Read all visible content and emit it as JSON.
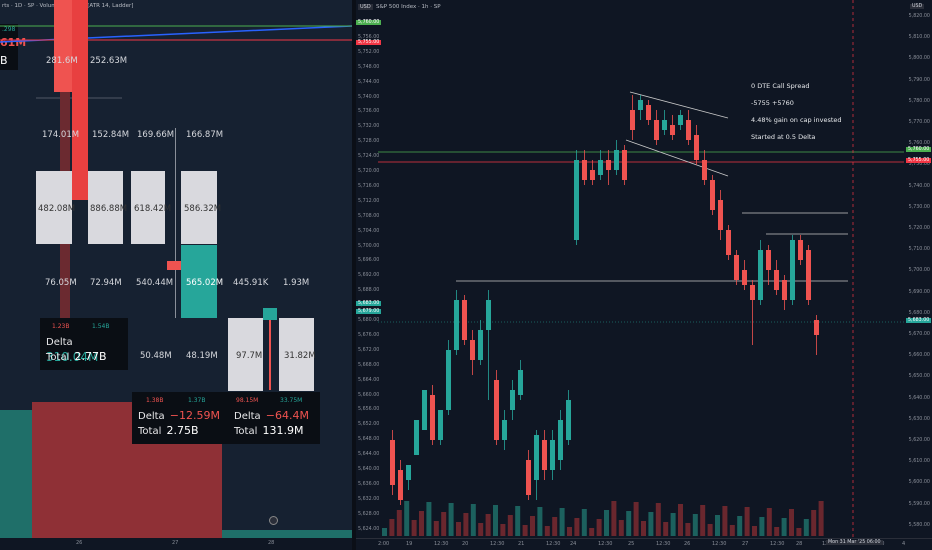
{
  "left_panel": {
    "title": "rts · 1D · SP · Volume footprint [ATR 14, Ladder]",
    "top_value_green": ".298",
    "top_value_red": "61M",
    "top_value_total": "B",
    "row1": {
      "left": "281.6M",
      "right": "252.63M"
    },
    "row2": {
      "a": "174.01M",
      "b": "152.84M",
      "c": "169.66M",
      "d": "166.87M"
    },
    "row3": {
      "a": "482.08M",
      "b": "886.88M",
      "c": "618.42M",
      "d": "586.32M"
    },
    "row4": {
      "a": "76.05M",
      "b": "72.94M",
      "c": "540.44M",
      "d": "565.02M",
      "e": "445.91K",
      "f": "1.93M"
    },
    "row5": {
      "a": "50.48M",
      "b": "48.19M",
      "c": "97.7M",
      "d": "31.82M"
    },
    "box1": {
      "red_small": "1.23B",
      "green_small": "1.54B",
      "delta_label": "Delta",
      "delta": "310.04M",
      "total_label": "Total",
      "total": "2.77B"
    },
    "box2": {
      "red_small": "1.38B",
      "green_small": "1.37B",
      "delta_label": "Delta",
      "delta": "−12.59M",
      "total_label": "Total",
      "total": "2.75B"
    },
    "box3": {
      "red_small": "98.15M",
      "green_small": "33.75M",
      "delta_label": "Delta",
      "delta": "−64.4M",
      "total_label": "Total",
      "total": "131.9M"
    },
    "x_ticks": [
      "26",
      "27",
      "28"
    ]
  },
  "right_panel": {
    "currency": "USD",
    "title": "S&P 500 Index · 1h · SP",
    "annotation": {
      "line1": "0 DTE Call Spread",
      "line2": "-5755 +5760",
      "line3": "4.48% gain on cap invested",
      "line4": "Started at 0.5 Delta"
    },
    "left_axis": [
      "5,760.00",
      "5,756.00",
      "5,752.00",
      "5,748.00",
      "5,744.00",
      "5,740.00",
      "5,736.00",
      "5,732.00",
      "5,728.00",
      "5,724.00",
      "5,720.00",
      "5,716.00",
      "5,712.00",
      "5,708.00",
      "5,704.00",
      "5,700.00",
      "5,696.00",
      "5,692.00",
      "5,688.00",
      "5,684.00",
      "5,680.00",
      "5,676.00",
      "5,672.00",
      "5,668.00",
      "5,664.00",
      "5,660.00",
      "5,656.00",
      "5,652.00",
      "5,648.00",
      "5,644.00",
      "5,640.00",
      "5,636.00",
      "5,632.00",
      "5,628.00",
      "5,624.00"
    ],
    "left_tags": {
      "green": "5,760.00",
      "red": "5,755.00",
      "current": "5,683.00",
      "current2": "5,679.00"
    },
    "right_axis": [
      "5,820.00",
      "5,810.00",
      "5,800.00",
      "5,790.00",
      "5,780.00",
      "5,770.00",
      "5,760.00",
      "5,750.00",
      "5,740.00",
      "5,730.00",
      "5,720.00",
      "5,710.00",
      "5,700.00",
      "5,690.00",
      "5,680.00",
      "5,670.00",
      "5,660.00",
      "5,650.00",
      "5,640.00",
      "5,630.00",
      "5,620.00",
      "5,610.00",
      "5,600.00",
      "5,590.00",
      "5,580.00"
    ],
    "right_tags": {
      "green": "5,760.00",
      "red": "5,755.00",
      "current": "5,683.00"
    },
    "x_ticks": [
      "2:00",
      "19",
      "12:30",
      "20",
      "12:30",
      "21",
      "12:30",
      "24",
      "12:30",
      "25",
      "12:30",
      "26",
      "12:30",
      "27",
      "12:30",
      "28",
      "12:30",
      "12:30",
      "12:30",
      "4"
    ],
    "date_highlight": "Mon 31 Mar '25  06:00",
    "usd_label": "USD"
  },
  "colors": {
    "up": "#26a69a",
    "down": "#ef5350",
    "green_line": "#4caf50",
    "red_line": "#f23645"
  }
}
